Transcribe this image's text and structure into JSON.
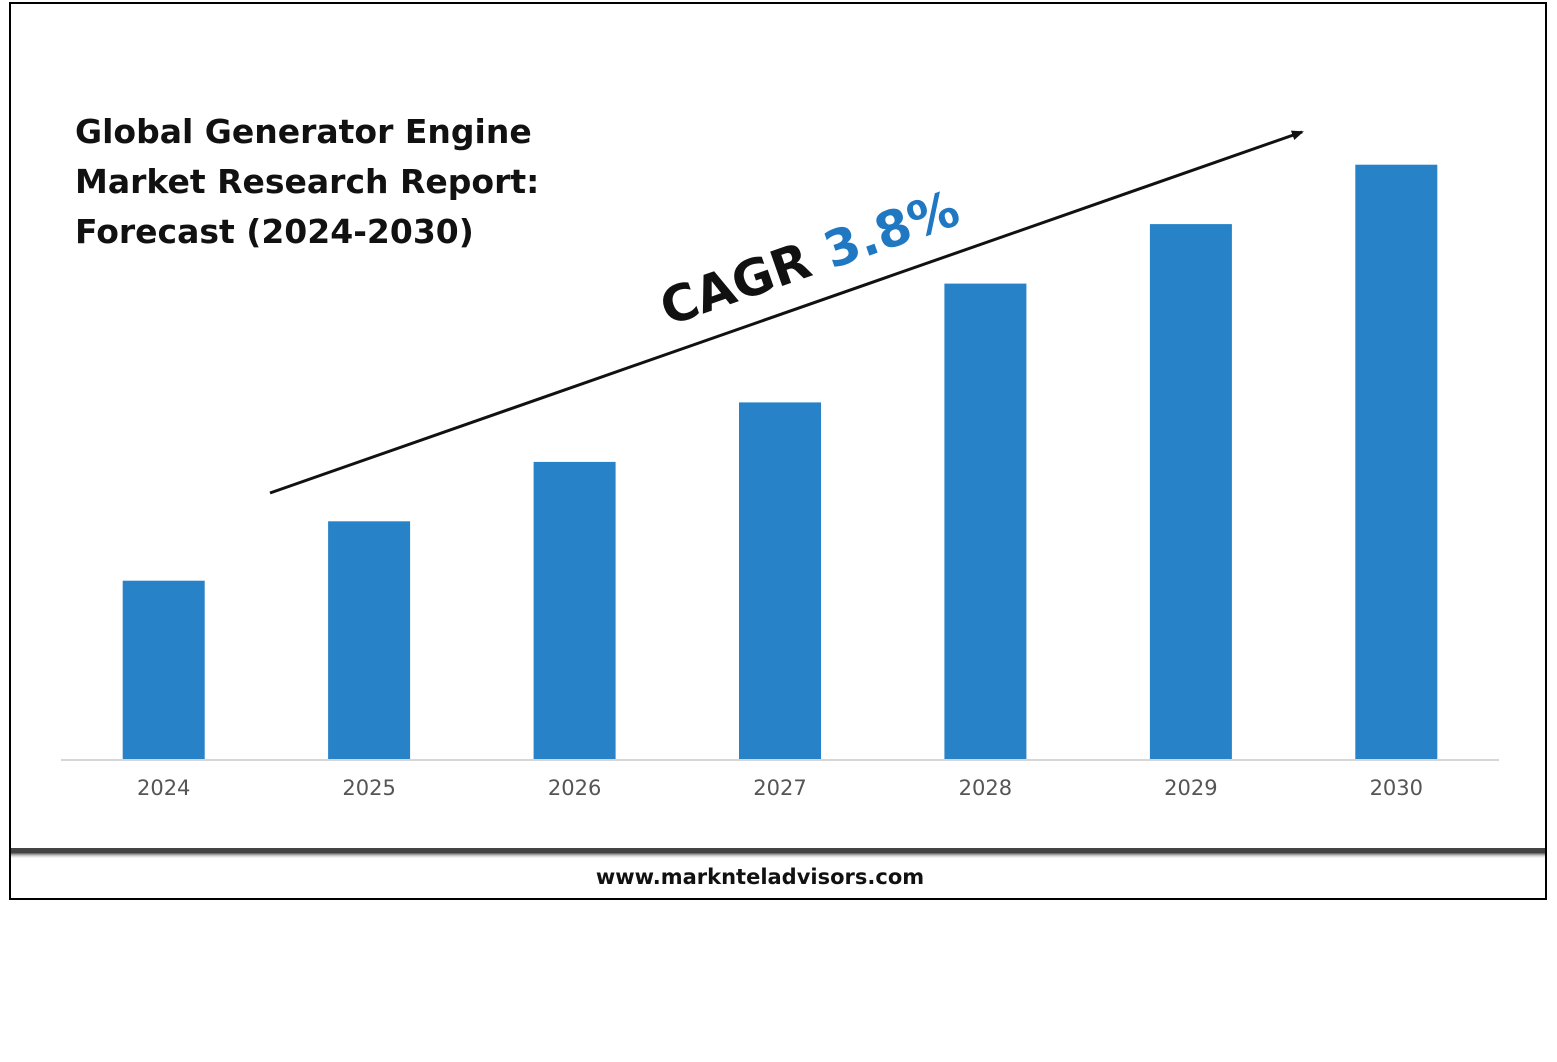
{
  "chart_data": {
    "type": "bar",
    "title_lines": [
      "Global Generator Engine",
      "Market Research Report:",
      "Forecast (2024-2030)"
    ],
    "categories": [
      "2024",
      "2025",
      "2026",
      "2027",
      "2028",
      "2029",
      "2030"
    ],
    "values": [
      30,
      40,
      50,
      60,
      80,
      90,
      100
    ],
    "ylim": [
      0,
      105
    ],
    "grid": false,
    "bar_color": "#2882c8",
    "annotation": {
      "label": "CAGR",
      "value": "3.8%",
      "value_color": "#1f78c1"
    }
  },
  "footer": {
    "website": "www.marknteladvisors.com"
  }
}
